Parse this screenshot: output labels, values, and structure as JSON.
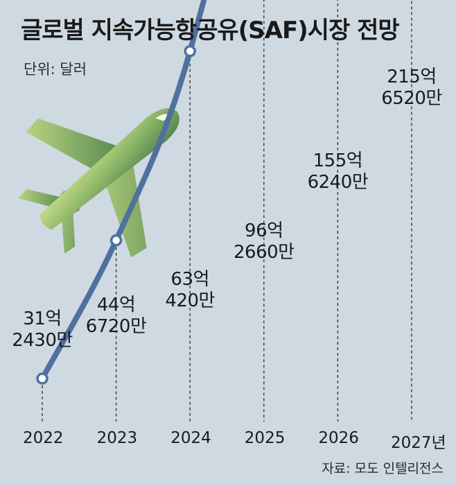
{
  "title": "글로벌 지속가능항공유(SAF)시장 전망",
  "unit_label": "단위: 달러",
  "source": "자료: 모도 인텔리전스",
  "icon": "airplane-icon",
  "colors": {
    "background": "#cfd9e2",
    "line": "#4f719e",
    "plane_light": "#c4dc84",
    "plane_dark": "#5e8e56"
  },
  "chart_data": {
    "type": "line",
    "title": "글로벌 지속가능항공유(SAF)시장 전망",
    "unit": "단위: 달러",
    "x": [
      2022,
      2023,
      2024,
      2025,
      2026,
      2027
    ],
    "x_labels": [
      "2022",
      "2023",
      "2024",
      "2025",
      "2026",
      "2027년"
    ],
    "values": [
      3124300000,
      4467200000,
      6304200000,
      9626600000,
      15562400000,
      21565200000
    ],
    "data_labels": [
      [
        "31억",
        "2430만"
      ],
      [
        "44억",
        "6720만"
      ],
      [
        "63억",
        "420만"
      ],
      [
        "96억",
        "2660만"
      ],
      [
        "155억",
        "6240만"
      ],
      [
        "215억",
        "6520만"
      ]
    ],
    "last_point_arrow": true,
    "grid": false,
    "legend": "none"
  }
}
